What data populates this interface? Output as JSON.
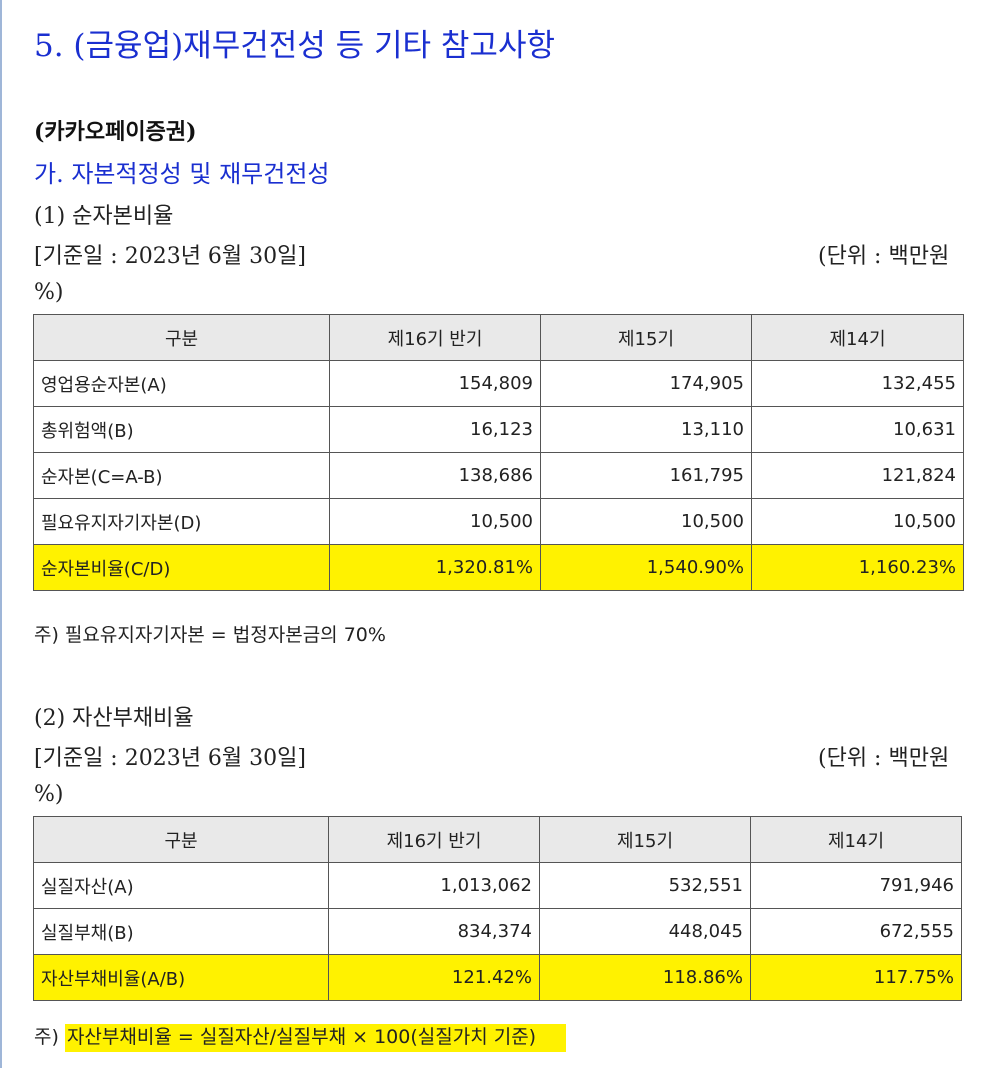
{
  "section_title": "5. (금융업)재무건전성 등 기타 참고사항",
  "company": "(카카오페이증권)",
  "subsection": "가. 자본적정성 및 재무건전성",
  "table1": {
    "heading": "(1) 순자본비율",
    "base_date": "[기준일 : 2023년 6월 30일]",
    "unit": "(단위 : 백만원",
    "unit_cont": "%)",
    "columns": [
      "구분",
      "제16기 반기",
      "제15기",
      "제14기"
    ],
    "rows": [
      {
        "label": "영업용순자본(A)",
        "values": [
          "154,809",
          "174,905",
          "132,455"
        ]
      },
      {
        "label": "총위험액(B)",
        "values": [
          "16,123",
          "13,110",
          "10,631"
        ]
      },
      {
        "label": "순자본(C=A-B)",
        "values": [
          "138,686",
          "161,795",
          "121,824"
        ]
      },
      {
        "label": "필요유지자기자본(D)",
        "values": [
          "10,500",
          "10,500",
          "10,500"
        ]
      },
      {
        "label": "순자본비율(C/D)",
        "values": [
          "1,320.81%",
          "1,540.90%",
          "1,160.23%"
        ]
      }
    ],
    "note": "주) 필요유지자기자본 = 법정자본금의 70%"
  },
  "table2": {
    "heading": "(2) 자산부채비율",
    "base_date": "[기준일 : 2023년 6월 30일]",
    "unit": "(단위 : 백만원",
    "unit_cont": "%)",
    "columns": [
      "구분",
      "제16기 반기",
      "제15기",
      "제14기"
    ],
    "rows": [
      {
        "label": "실질자산(A)",
        "values": [
          "1,013,062",
          "532,551",
          "791,946"
        ]
      },
      {
        "label": "실질부채(B)",
        "values": [
          "834,374",
          "448,045",
          "672,555"
        ]
      },
      {
        "label": "자산부채비율(A/B)",
        "values": [
          "121.42%",
          "118.86%",
          "117.75%"
        ]
      }
    ],
    "note_prefix": "주)",
    "note": "자산부채비율 = 실질자산/실질부채 × 100(실질가치 기준)"
  },
  "highlight_color": "#fff200",
  "title_color": "#1a2fd0"
}
